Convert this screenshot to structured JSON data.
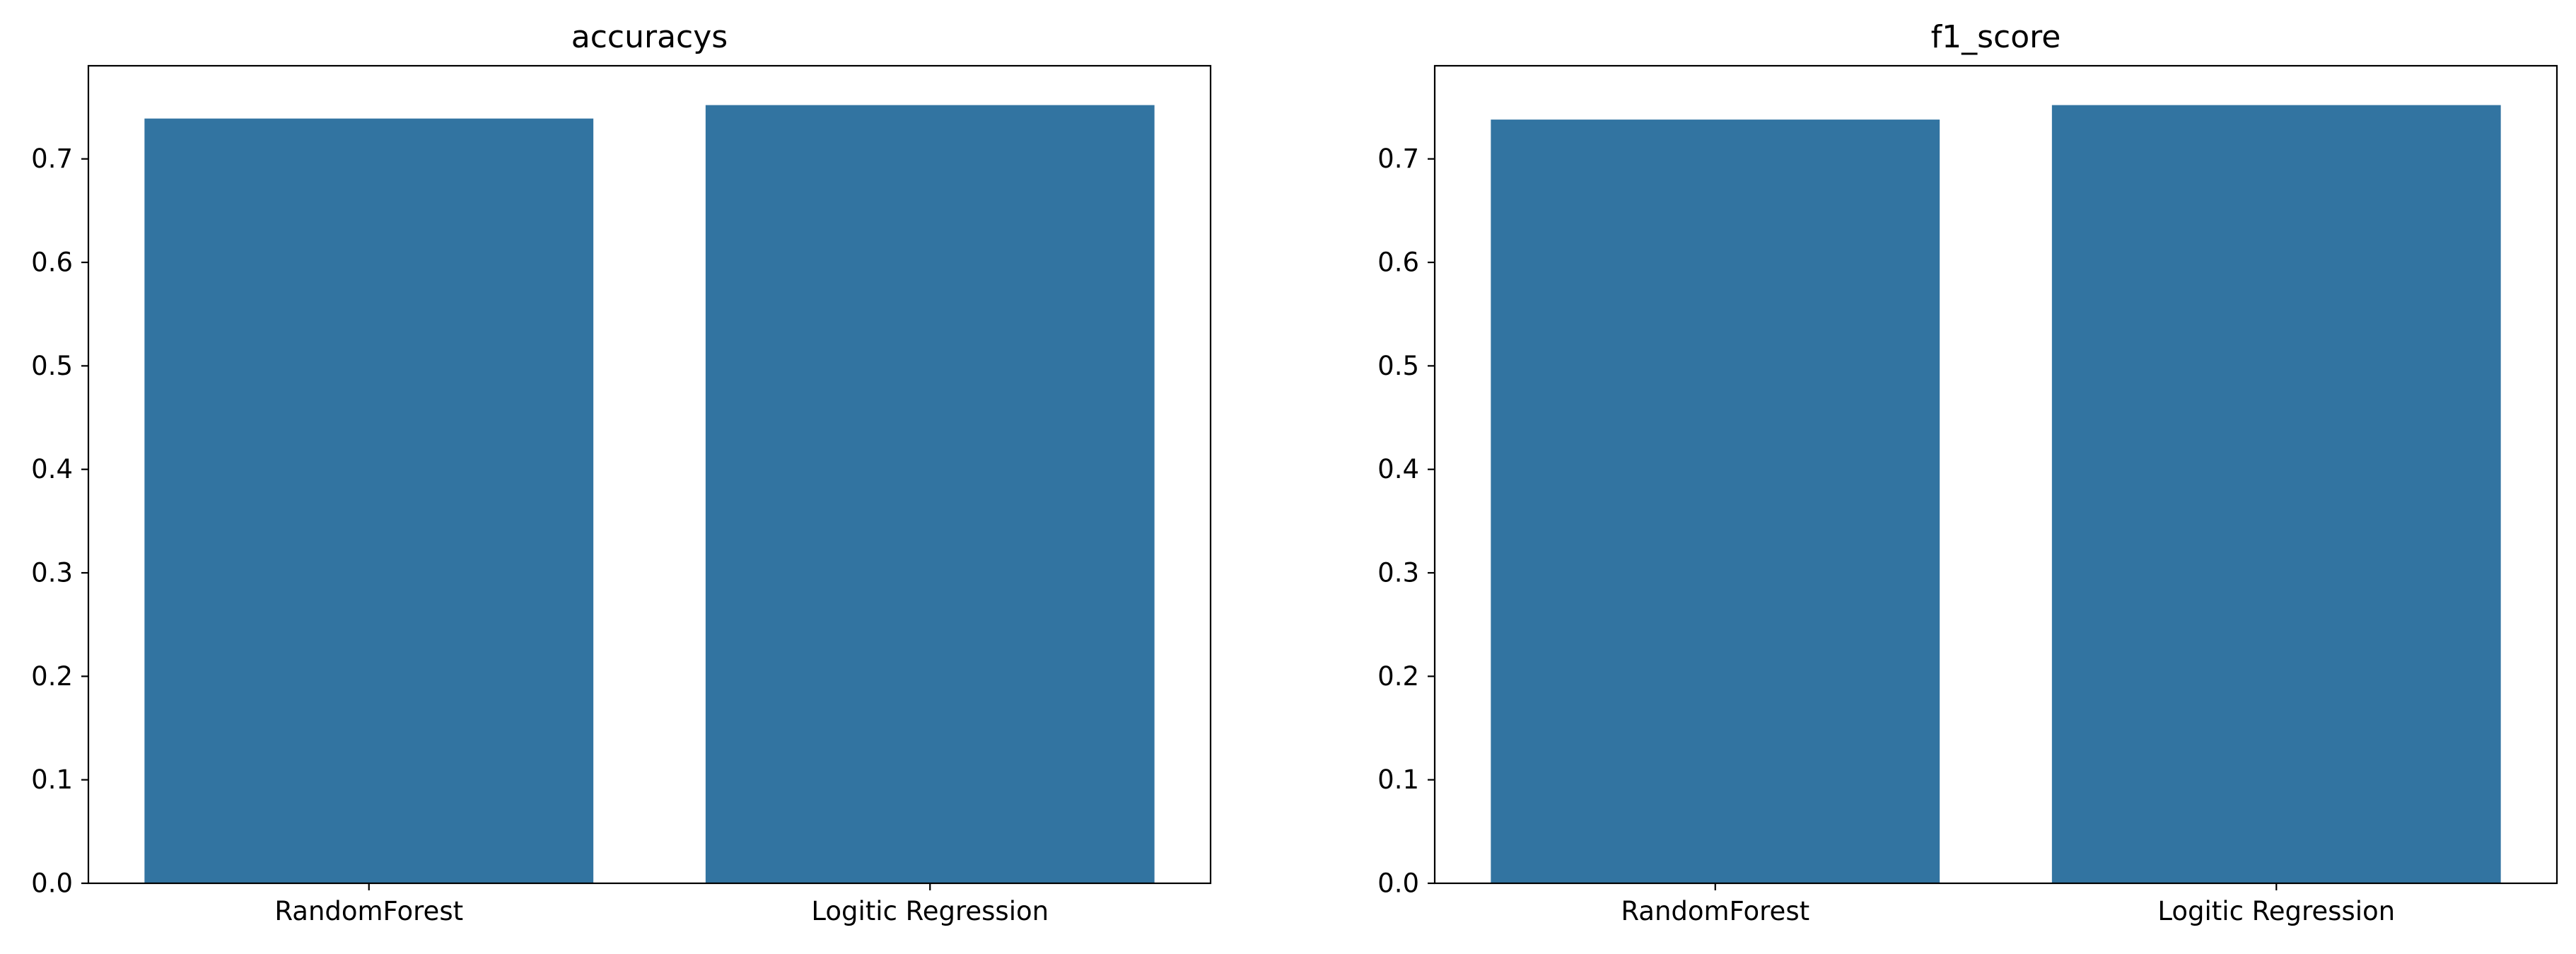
{
  "colors": {
    "bar": "#3274a1",
    "axis": "#000000",
    "background": "#ffffff"
  },
  "chart_data": [
    {
      "type": "bar",
      "title": "accuracys",
      "categories": [
        "RandomForest",
        "Logitic Regression"
      ],
      "values": [
        0.739,
        0.752
      ],
      "ylim": [
        0,
        0.79
      ],
      "yticks": [
        0.0,
        0.1,
        0.2,
        0.3,
        0.4,
        0.5,
        0.6,
        0.7
      ],
      "ytick_labels": [
        "0.0",
        "0.1",
        "0.2",
        "0.3",
        "0.4",
        "0.5",
        "0.6",
        "0.7"
      ],
      "xlabel": "",
      "ylabel": "",
      "grid": false
    },
    {
      "type": "bar",
      "title": "f1_score",
      "categories": [
        "RandomForest",
        "Logitic Regression"
      ],
      "values": [
        0.738,
        0.752
      ],
      "ylim": [
        0,
        0.79
      ],
      "yticks": [
        0.0,
        0.1,
        0.2,
        0.3,
        0.4,
        0.5,
        0.6,
        0.7
      ],
      "ytick_labels": [
        "0.0",
        "0.1",
        "0.2",
        "0.3",
        "0.4",
        "0.5",
        "0.6",
        "0.7"
      ],
      "xlabel": "",
      "ylabel": "",
      "grid": false
    }
  ]
}
